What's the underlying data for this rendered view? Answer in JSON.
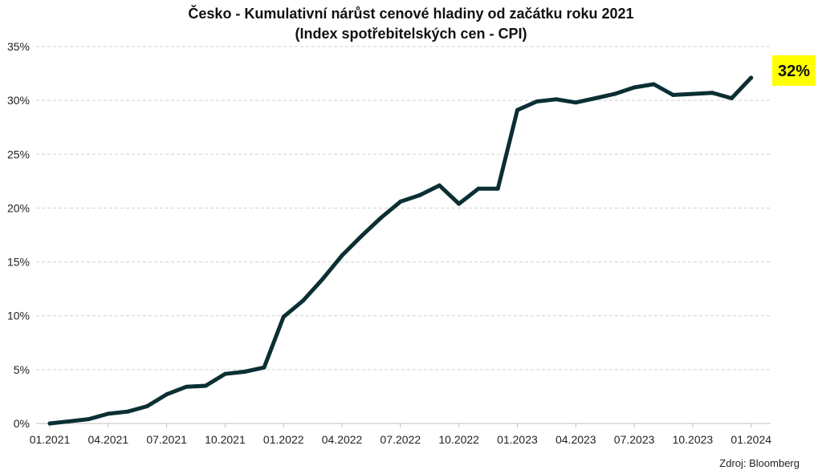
{
  "chart_data": {
    "type": "line",
    "title": "Česko - Kumulativní nárůst cenové hladiny od začátku roku 2021",
    "subtitle": "(Index spotřebitelských cen - CPI)",
    "xlabel": "",
    "ylabel": "",
    "source": "Zdroj: Bloomberg",
    "ylim": [
      0,
      35
    ],
    "yticks": [
      "0%",
      "5%",
      "10%",
      "15%",
      "20%",
      "25%",
      "30%",
      "35%"
    ],
    "xticks": [
      "01.2021",
      "04.2021",
      "07.2021",
      "10.2021",
      "01.2022",
      "04.2022",
      "07.2022",
      "10.2022",
      "01.2023",
      "04.2023",
      "07.2023",
      "10.2023",
      "01.2024"
    ],
    "grid": true,
    "line_color": "#0b2f33",
    "badge_color": "#ffff00",
    "last_value_label": "32%",
    "x": [
      "01.2021",
      "02.2021",
      "03.2021",
      "04.2021",
      "05.2021",
      "06.2021",
      "07.2021",
      "08.2021",
      "09.2021",
      "10.2021",
      "11.2021",
      "12.2021",
      "01.2022",
      "02.2022",
      "03.2022",
      "04.2022",
      "05.2022",
      "06.2022",
      "07.2022",
      "08.2022",
      "09.2022",
      "10.2022",
      "11.2022",
      "12.2022",
      "01.2023",
      "02.2023",
      "03.2023",
      "04.2023",
      "05.2023",
      "06.2023",
      "07.2023",
      "08.2023",
      "09.2023",
      "10.2023",
      "11.2023",
      "12.2023",
      "01.2024"
    ],
    "values": [
      0.0,
      0.2,
      0.4,
      0.9,
      1.1,
      1.6,
      2.7,
      3.4,
      3.5,
      4.6,
      4.8,
      5.2,
      9.9,
      11.4,
      13.4,
      15.6,
      17.4,
      19.1,
      20.6,
      21.2,
      22.1,
      20.4,
      21.8,
      21.8,
      29.1,
      29.9,
      30.1,
      29.8,
      30.2,
      30.6,
      31.2,
      31.5,
      30.5,
      30.6,
      30.7,
      30.2,
      32.1
    ]
  }
}
